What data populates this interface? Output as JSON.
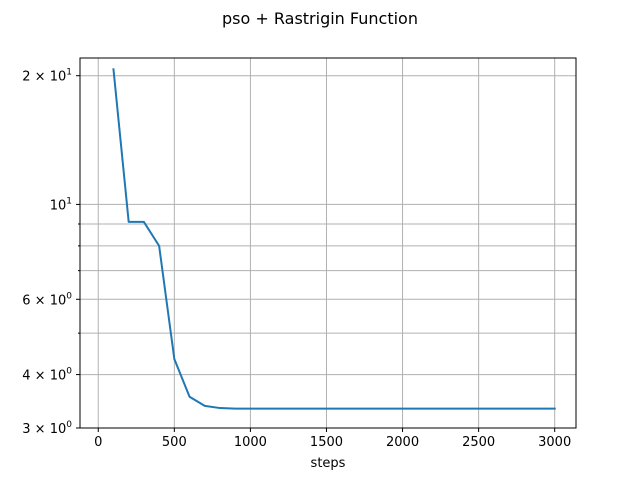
{
  "chart_data": {
    "type": "line",
    "title": "pso + Rastrigin Function",
    "xlabel": "steps",
    "ylabel": "",
    "xlim": [
      -120,
      3140
    ],
    "ylim": [
      3,
      22
    ],
    "yscale": "log",
    "grid": true,
    "line_color": "#1f77b4",
    "grid_color": "#b0b0b0",
    "x_ticks": [
      {
        "value": 0,
        "label": "0"
      },
      {
        "value": 500,
        "label": "500"
      },
      {
        "value": 1000,
        "label": "1000"
      },
      {
        "value": 1500,
        "label": "1500"
      },
      {
        "value": 2000,
        "label": "2000"
      },
      {
        "value": 2500,
        "label": "2500"
      },
      {
        "value": 3000,
        "label": "3000"
      }
    ],
    "y_major_ticks": [
      {
        "value": 3,
        "mant": "3",
        "exp": "0"
      },
      {
        "value": 4,
        "mant": "4",
        "exp": "0"
      },
      {
        "value": 6,
        "mant": "6",
        "exp": "0"
      },
      {
        "value": 10,
        "mant": "10",
        "exp": "1"
      },
      {
        "value": 20,
        "mant": "2",
        "exp": "1"
      }
    ],
    "y_minor_ticks": [
      5,
      7,
      8,
      9
    ],
    "series": [
      {
        "x": [
          100,
          200,
          300,
          400,
          500,
          600,
          700,
          800,
          900,
          1000,
          1100,
          1200,
          1300,
          1400,
          1500,
          1600,
          1700,
          1800,
          1900,
          2000,
          2100,
          2200,
          2300,
          2400,
          2500,
          2600,
          2700,
          2800,
          2900,
          3000
        ],
        "values": [
          20.7,
          9.1,
          9.1,
          8.0,
          4.35,
          3.55,
          3.38,
          3.34,
          3.33,
          3.33,
          3.33,
          3.33,
          3.33,
          3.33,
          3.33,
          3.33,
          3.33,
          3.33,
          3.33,
          3.33,
          3.33,
          3.33,
          3.33,
          3.33,
          3.33,
          3.33,
          3.33,
          3.33,
          3.33,
          3.33
        ]
      }
    ]
  }
}
